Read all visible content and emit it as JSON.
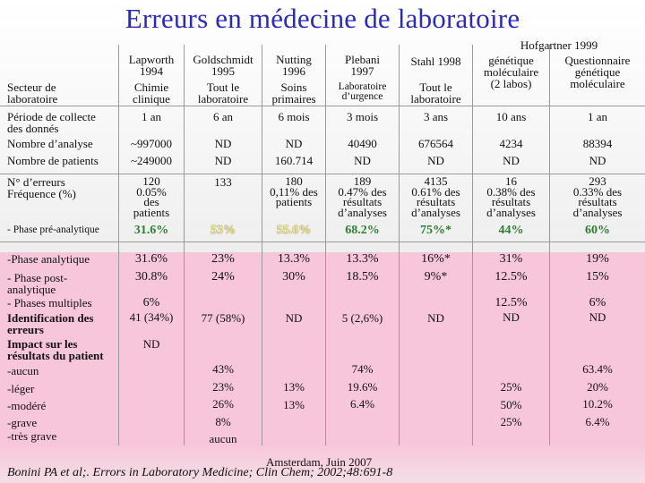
{
  "title": "Erreurs en médecine de laboratoire",
  "headers": {
    "lapworth": "Lapworth\n1994",
    "goldschmidt": "Goldschmidt\n1995",
    "nutting": "Nutting\n1996",
    "plebani": "Plebani\n1997",
    "stahl": "Stahl 1998",
    "hofgartner": "Hofgartner 1999",
    "hof_a": "génétique\nmoléculaire\n(2 labos)",
    "hof_b": "Questionnaire\ngénétique\nmoléculaire"
  },
  "labels": {
    "secteur": "Secteur de\nlaboratoire",
    "periode": "Période de collecte\ndes donnés",
    "nb_analyse": "Nombre d’analyse",
    "nb_patients": "Nombre de patients",
    "nb_erreurs": "N° d’erreurs\nFréquence (%)",
    "pre": "- Phase pré-analytique",
    "analytique": "-Phase analytique",
    "post": "- Phase post-\nanalytique",
    "multiples": "- Phases multiples",
    "identification": "Identification des\nerreurs",
    "impact": "Impact sur les\nrésultats du patient",
    "aucun": "-aucun",
    "leger": "-léger",
    "modere": "-modéré",
    "grave": "-grave",
    "tres_grave": "-très grave"
  },
  "secteur": {
    "lapworth": "Chimie\nclinique",
    "goldschmidt": "Tout le\nlaboratoire",
    "nutting": "Soins\nprimaires",
    "plebani": "Laboratoire\nd’urgence",
    "stahl": "Tout le\nlaboratoire"
  },
  "periode": {
    "lapworth": "1 an",
    "goldschmidt": "6 an",
    "nutting": "6 mois",
    "plebani": "3 mois",
    "stahl": "3 ans",
    "hof_a": "10 ans",
    "hof_b": "1 an"
  },
  "nb_analyse": {
    "lapworth": "~997000",
    "goldschmidt": "ND",
    "nutting": "ND",
    "plebani": "40490",
    "stahl": "676564",
    "hof_a": "4234",
    "hof_b": "88394"
  },
  "nb_patients": {
    "lapworth": "~249000",
    "goldschmidt": "ND",
    "nutting": "160.714",
    "plebani": "ND",
    "stahl": "ND",
    "hof_a": "ND",
    "hof_b": "ND"
  },
  "nb_erreurs": {
    "lapworth": "120\n0.05%\ndes\npatients",
    "goldschmidt": "133",
    "nutting": "180\n0,11% des\npatients",
    "plebani": "189\n0.47% des\nrésultats\nd’analyses",
    "stahl": "4135\n0.61% des\nrésultats\nd’analyses",
    "hof_a": "16\n0.38% des\nrésultats\nd’analyses",
    "hof_b": "293\n0.33% des\nrésultats\nd’analyses"
  },
  "pre": {
    "lapworth": "31.6%",
    "goldschmidt": "53%",
    "nutting": "55.6%",
    "plebani": "68.2%",
    "stahl": "75%*",
    "hof_a": "44%",
    "hof_b": "60%"
  },
  "analytique": {
    "lapworth": "31.6%",
    "goldschmidt": "23%",
    "nutting": "13.3%",
    "plebani": "13.3%",
    "stahl": "16%*",
    "hof_a": "31%",
    "hof_b": "19%"
  },
  "post": {
    "lapworth": "30.8%",
    "goldschmidt": "24%",
    "nutting": "30%",
    "plebani": "18.5%",
    "stahl": "9%*",
    "hof_a": "12.5%",
    "hof_b": "15%"
  },
  "multiples": {
    "lapworth": "6%",
    "hof_a": "12.5%",
    "hof_b": "6%"
  },
  "identification": {
    "lapworth": "41 (34%)",
    "goldschmidt": "77 (58%)",
    "nutting": "ND",
    "plebani": "5 (2,6%)",
    "stahl": "ND",
    "hof_a": "ND",
    "hof_b": "ND"
  },
  "impact_lapworth": "ND",
  "impact": {
    "goldschmidt": "43%\n\n23%\n\n26%\n\n8%\n\naucun",
    "nutting": "13%\n\n13%",
    "plebani": "74%\n\n19.6%\n\n6.4%",
    "hof_a": "25%\n\n50%\n\n25%",
    "hof_b": "63.4%\n\n20%\n\n10.2%\n\n6.4%"
  },
  "footer": {
    "location": "Amsterdam, Juin 2007",
    "citation": "Bonini PA et al;. Errors in Laboratory Medicine; Clin Chem; 2002;48:691-8"
  },
  "colors": {
    "title": "#2b2bb8",
    "pink_band": "#f8c6da",
    "pre_green": "#2e7d32",
    "highlight_yellow": "#f9ea78"
  }
}
